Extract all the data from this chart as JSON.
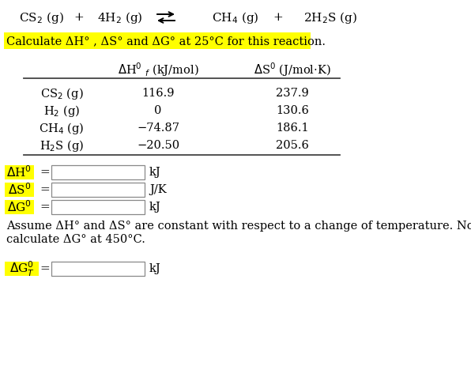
{
  "highlight_text": "Calculate ΔH° , ΔS° and ΔG° at 25°C for this reaction.",
  "table_rows": [
    [
      "CS$_2$ (g)",
      "116.9",
      "237.9"
    ],
    [
      "H$_2$ (g)",
      "0",
      "130.6"
    ],
    [
      "CH$_4$ (g)",
      "−74.87",
      "186.1"
    ],
    [
      "H$_2$S (g)",
      "−20.50",
      "205.6"
    ]
  ],
  "assume_text1": "Assume ΔH° and ΔS° are constant with respect to a change of temperature. Now",
  "assume_text2": "calculate ΔG° at 450°C.",
  "unit_kJ": "kJ",
  "unit_JK": "J/K",
  "bg_color": "#ffffff",
  "highlight_color": "#ffff00",
  "text_color": "#000000",
  "font_family": "DejaVu Serif",
  "fs_main": 11,
  "fs_table": 10.5,
  "fs_label": 11
}
